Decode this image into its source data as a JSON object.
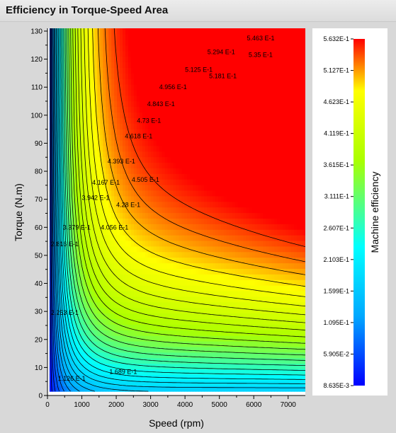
{
  "window": {
    "title": "Efficiency in Torque-Speed Area"
  },
  "chart_data": {
    "type": "heatmap",
    "title": "Efficiency in Torque-Speed Area",
    "xlabel": "Speed (rpm)",
    "ylabel": "Torque (N.m)",
    "xlim": [
      0,
      7500
    ],
    "ylim": [
      0,
      131
    ],
    "x_ticks": [
      "0",
      "1000",
      "2000",
      "3000",
      "4000",
      "5000",
      "6000",
      "7000"
    ],
    "y_ticks": [
      "0",
      "10",
      "20",
      "30",
      "40",
      "50",
      "60",
      "70",
      "80",
      "90",
      "100",
      "110",
      "120",
      "130"
    ],
    "colorbar": {
      "label": "Machine efficiency",
      "min": 0.008635,
      "max": 0.5632,
      "ticks": [
        "5.632E-1",
        "5.127E-1",
        "4.623E-1",
        "4.119E-1",
        "3.615E-1",
        "3.111E-1",
        "2.607E-1",
        "2.103E-1",
        "1.599E-1",
        "1.095E-1",
        "5.905E-2",
        "8.635E-3"
      ],
      "colors": [
        "#0000ff",
        "#00a8ff",
        "#00ffff",
        "#aaff00",
        "#ffff00",
        "#ff0000"
      ]
    },
    "contour_labels": [
      {
        "text": "5.463 E-1",
        "speed": 5800,
        "torque": 127.5,
        "value": 0.5463
      },
      {
        "text": "5.294 E-1",
        "speed": 4650,
        "torque": 122.5,
        "value": 0.5294
      },
      {
        "text": "5.35 E-1",
        "speed": 5850,
        "torque": 121.5,
        "value": 0.535
      },
      {
        "text": "5.125 E-1",
        "speed": 4000,
        "torque": 116.2,
        "value": 0.5125
      },
      {
        "text": "5.181 E-1",
        "speed": 4700,
        "torque": 114,
        "value": 0.5181
      },
      {
        "text": "4.956 E-1",
        "speed": 3250,
        "torque": 110,
        "value": 0.4956
      },
      {
        "text": "4.843 E-1",
        "speed": 2900,
        "torque": 104,
        "value": 0.4843
      },
      {
        "text": "4.73 E-1",
        "speed": 2600,
        "torque": 98,
        "value": 0.473
      },
      {
        "text": "4.618 E-1",
        "speed": 2250,
        "torque": 92.5,
        "value": 0.4618
      },
      {
        "text": "4.393 E-1",
        "speed": 1750,
        "torque": 83.5,
        "value": 0.4393
      },
      {
        "text": "4.505 E-1",
        "speed": 2450,
        "torque": 77,
        "value": 0.4505
      },
      {
        "text": "4.167 E-1",
        "speed": 1300,
        "torque": 76,
        "value": 0.4167
      },
      {
        "text": "3.942 E-1",
        "speed": 1000,
        "torque": 70.5,
        "value": 0.3942
      },
      {
        "text": "4.28 E-1",
        "speed": 2000,
        "torque": 68,
        "value": 0.428
      },
      {
        "text": "3.379 E-1",
        "speed": 450,
        "torque": 60,
        "value": 0.3379
      },
      {
        "text": "4.056 E-1",
        "speed": 1550,
        "torque": 60,
        "value": 0.4056
      },
      {
        "text": "2.816 E-1",
        "speed": 100,
        "torque": 54,
        "value": 0.2816
      },
      {
        "text": "2.253 E-1",
        "speed": 100,
        "torque": 29.5,
        "value": 0.2253
      },
      {
        "text": "1.689 E-1",
        "speed": 1800,
        "torque": 8.5,
        "value": 0.1689
      },
      {
        "text": "1.126 E-1",
        "speed": 300,
        "torque": 6,
        "value": 0.1126
      }
    ]
  }
}
